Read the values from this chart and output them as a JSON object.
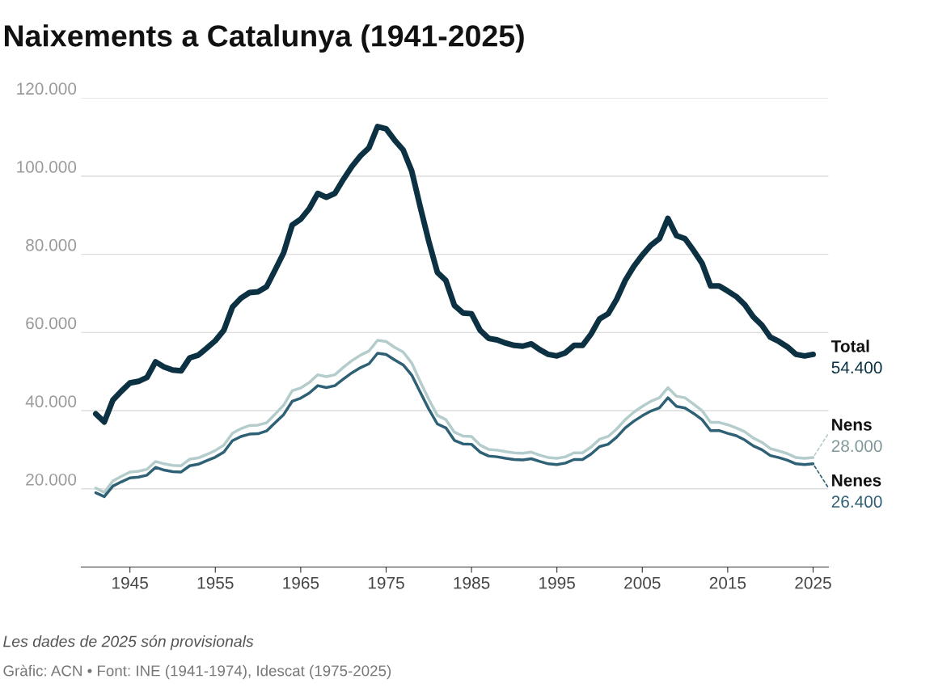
{
  "chart_data": {
    "type": "line",
    "title": "Naixements a Catalunya (1941-2025)",
    "x": [
      1941,
      1942,
      1943,
      1944,
      1945,
      1946,
      1947,
      1948,
      1949,
      1950,
      1951,
      1952,
      1953,
      1954,
      1955,
      1956,
      1957,
      1958,
      1959,
      1960,
      1961,
      1962,
      1963,
      1964,
      1965,
      1966,
      1967,
      1968,
      1969,
      1970,
      1971,
      1972,
      1973,
      1974,
      1975,
      1976,
      1977,
      1978,
      1979,
      1980,
      1981,
      1982,
      1983,
      1984,
      1985,
      1986,
      1987,
      1988,
      1989,
      1990,
      1991,
      1992,
      1993,
      1994,
      1995,
      1996,
      1997,
      1998,
      1999,
      2000,
      2001,
      2002,
      2003,
      2004,
      2005,
      2006,
      2007,
      2008,
      2009,
      2010,
      2011,
      2012,
      2013,
      2014,
      2015,
      2016,
      2017,
      2018,
      2019,
      2020,
      2021,
      2022,
      2023,
      2024,
      2025
    ],
    "series": [
      {
        "name": "Total",
        "color": "#0b3142",
        "values": [
          39200,
          37100,
          42700,
          45000,
          47100,
          47500,
          48500,
          52500,
          51200,
          50400,
          50200,
          53500,
          54200,
          56000,
          57900,
          60600,
          66500,
          68800,
          70200,
          70400,
          71700,
          76000,
          80400,
          87500,
          89000,
          91700,
          95600,
          94600,
          95600,
          99200,
          102500,
          105200,
          107300,
          112700,
          112100,
          109200,
          106700,
          101300,
          92100,
          83300,
          75400,
          73300,
          66900,
          65000,
          64800,
          60600,
          58500,
          58100,
          57300,
          56700,
          56500,
          57100,
          55600,
          54400,
          54000,
          54800,
          56700,
          56700,
          59600,
          63500,
          64800,
          68500,
          73300,
          76900,
          79800,
          82300,
          84000,
          89200,
          84800,
          84000,
          81000,
          77700,
          71900,
          71900,
          70600,
          69200,
          67100,
          64000,
          61900,
          58800,
          57700,
          56300,
          54400,
          54000,
          54400
        ],
        "value_labels": [
          null,
          null,
          null,
          null,
          null,
          null,
          null,
          null,
          null,
          null,
          null,
          null,
          null,
          null,
          null,
          null,
          null,
          null,
          null,
          null,
          null,
          null,
          null,
          null,
          null,
          null,
          null,
          null,
          null,
          null,
          null,
          null,
          null,
          null,
          null,
          null,
          null,
          null,
          null,
          null,
          null,
          null,
          null,
          null,
          null,
          null,
          null,
          null,
          null,
          null,
          null,
          null,
          null,
          null,
          null,
          null,
          null,
          null,
          null,
          null,
          null,
          null,
          null,
          null,
          null,
          null,
          null,
          null,
          null,
          null,
          null,
          null,
          null,
          null,
          null,
          null,
          null,
          null,
          null,
          null,
          null,
          null,
          null,
          null,
          "54.400"
        ]
      },
      {
        "name": "Nens",
        "color": "#b4cccc",
        "values": [
          20200,
          19100,
          22000,
          23200,
          24300,
          24500,
          25000,
          27000,
          26400,
          26000,
          25900,
          27600,
          27900,
          28800,
          29800,
          31200,
          34200,
          35400,
          36200,
          36300,
          36900,
          39100,
          41400,
          45100,
          45800,
          47200,
          49200,
          48700,
          49200,
          51100,
          52800,
          54200,
          55300,
          58000,
          57700,
          56200,
          55000,
          52200,
          47400,
          42900,
          38800,
          37700,
          34500,
          33500,
          33400,
          31200,
          30100,
          29900,
          29500,
          29200,
          29100,
          29400,
          28600,
          28000,
          27800,
          28200,
          29200,
          29200,
          30700,
          32700,
          33400,
          35300,
          37700,
          39600,
          41100,
          42400,
          43300,
          45900,
          43700,
          43300,
          41700,
          40000,
          37000,
          37000,
          36400,
          35600,
          34600,
          33000,
          31900,
          30300,
          29700,
          29000,
          28000,
          27800,
          28000
        ],
        "value_labels": [
          null,
          null,
          null,
          null,
          null,
          null,
          null,
          null,
          null,
          null,
          null,
          null,
          null,
          null,
          null,
          null,
          null,
          null,
          null,
          null,
          null,
          null,
          null,
          null,
          null,
          null,
          null,
          null,
          null,
          null,
          null,
          null,
          null,
          null,
          null,
          null,
          null,
          null,
          null,
          null,
          null,
          null,
          null,
          null,
          null,
          null,
          null,
          null,
          null,
          null,
          null,
          null,
          null,
          null,
          null,
          null,
          null,
          null,
          null,
          null,
          null,
          null,
          null,
          null,
          null,
          null,
          null,
          null,
          null,
          null,
          null,
          null,
          null,
          null,
          null,
          null,
          null,
          null,
          null,
          null,
          null,
          null,
          null,
          null,
          "28.000"
        ]
      },
      {
        "name": "Nenes",
        "color": "#2e6175",
        "values": [
          19000,
          18000,
          20700,
          21800,
          22800,
          23000,
          23500,
          25500,
          24800,
          24400,
          24300,
          25900,
          26300,
          27200,
          28100,
          29400,
          32300,
          33400,
          34000,
          34100,
          34800,
          36900,
          39000,
          42400,
          43200,
          44500,
          46400,
          45900,
          46400,
          48100,
          49700,
          51000,
          52000,
          54700,
          54400,
          53000,
          51700,
          49100,
          44700,
          40400,
          36600,
          35600,
          32400,
          31500,
          31400,
          29400,
          28400,
          28200,
          27800,
          27500,
          27400,
          27700,
          27000,
          26400,
          26200,
          26600,
          27500,
          27500,
          28900,
          30800,
          31400,
          33200,
          35600,
          37300,
          38700,
          39900,
          40700,
          43300,
          41100,
          40700,
          39300,
          37700,
          34900,
          34900,
          34200,
          33600,
          32500,
          31000,
          30000,
          28500,
          28000,
          27300,
          26400,
          26200,
          26400
        ],
        "value_labels": [
          null,
          null,
          null,
          null,
          null,
          null,
          null,
          null,
          null,
          null,
          null,
          null,
          null,
          null,
          null,
          null,
          null,
          null,
          null,
          null,
          null,
          null,
          null,
          null,
          null,
          null,
          null,
          null,
          null,
          null,
          null,
          null,
          null,
          null,
          null,
          null,
          null,
          null,
          null,
          null,
          null,
          null,
          null,
          null,
          null,
          null,
          null,
          null,
          null,
          null,
          null,
          null,
          null,
          null,
          null,
          null,
          null,
          null,
          null,
          null,
          null,
          null,
          null,
          null,
          null,
          null,
          null,
          null,
          null,
          null,
          null,
          null,
          null,
          null,
          null,
          null,
          null,
          null,
          null,
          null,
          null,
          null,
          null,
          null,
          "26.400"
        ]
      }
    ],
    "xlim": [
      1939.3,
      2026.8
    ],
    "xticks": [
      1945,
      1955,
      1965,
      1975,
      1985,
      1995,
      2005,
      2015,
      2025
    ],
    "ylim": [
      0,
      120000
    ],
    "yticks": [
      {
        "value": 20000,
        "label": "20.000"
      },
      {
        "value": 40000,
        "label": "40.000"
      },
      {
        "value": 60000,
        "label": "60.000"
      },
      {
        "value": 80000,
        "label": "80.000"
      },
      {
        "value": 100000,
        "label": "100.000"
      },
      {
        "value": 120000,
        "label": "120.000"
      }
    ],
    "grid": "y",
    "annotations": [
      "Les dades de 2025 són provisionals",
      "Gràfic: ACN • Font: INE (1941-1974), Idescat (1975-2025)"
    ]
  }
}
